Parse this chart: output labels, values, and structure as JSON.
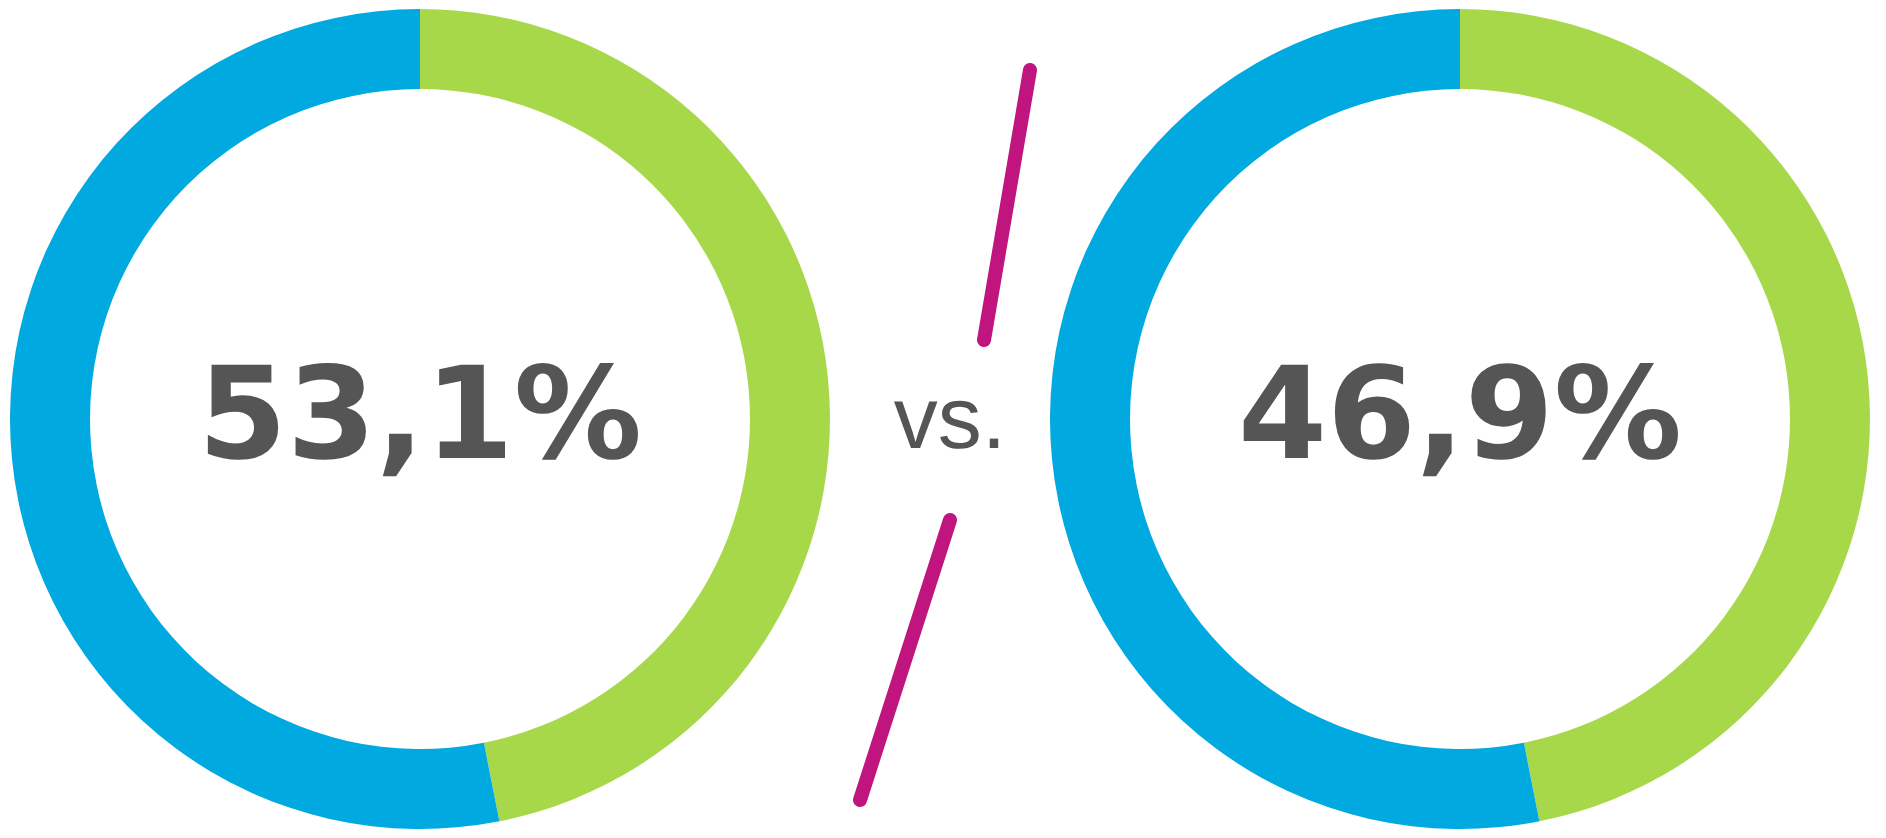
{
  "chart_data": [
    {
      "type": "donut",
      "categories": [
        null,
        null
      ],
      "values": [
        46.9,
        53.1
      ],
      "colors": [
        "#a6d84a",
        "#00a9e0"
      ],
      "value_labels": [
        null,
        "53,1%"
      ],
      "annotations": [
        "vs."
      ]
    },
    {
      "type": "donut",
      "categories": [
        null,
        null
      ],
      "values": [
        46.9,
        53.1
      ],
      "colors": [
        "#a6d84a",
        "#00a9e0"
      ],
      "value_labels": [
        "46,9%",
        null
      ]
    }
  ]
}
